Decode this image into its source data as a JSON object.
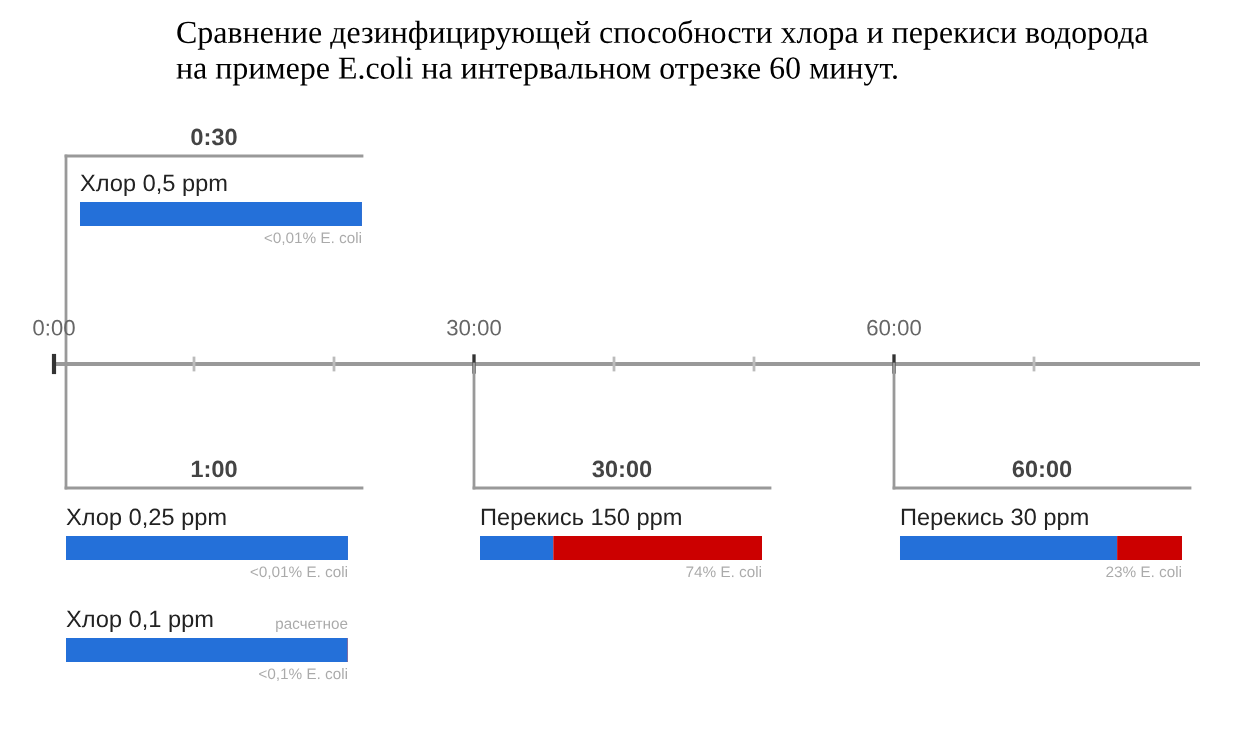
{
  "chart_data": {
    "type": "other",
    "title": "Сравнение дезинфицирующей способности хлора и перекиси водорода\nна примере E.coli на интервальном отрезке 60 минут.",
    "categories": [
      "Хлор 0,5 ppm",
      "Хлор 0,25 ppm",
      "Хлор 0,1 ppm",
      "Перекись 150 ppm",
      "Перекись 30 ppm"
    ],
    "values": [
      0.01,
      0.01,
      0.1,
      74,
      23
    ],
    "value_labels": [
      "<0,01% E. coli",
      "<0,01% E. coli",
      "<0,1% E. coli",
      "74% E. coli",
      "23% E. coli"
    ],
    "color": "#2470d9",
    "colors": [
      "#cc0000",
      "#cc0000",
      "#cc0000",
      "#cc0000",
      "#cc0000"
    ],
    "annotations": [
      "0:30",
      "1:00",
      "30:00",
      "60:00",
      "расчетное",
      "0:00",
      "30:00",
      "60:00"
    ]
  }
}
